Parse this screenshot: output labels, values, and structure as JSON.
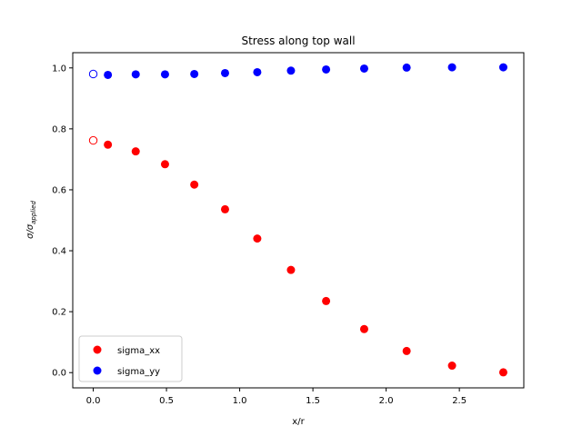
{
  "chart_data": {
    "type": "scatter",
    "title": "Stress along top wall",
    "xlabel": "x/r",
    "ylabel_main": "σ/σ",
    "ylabel_sub": "applied",
    "xlim": [
      -0.14,
      2.94
    ],
    "ylim": [
      -0.05,
      1.05
    ],
    "xticks": [
      0.0,
      0.5,
      1.0,
      1.5,
      2.0,
      2.5
    ],
    "xtick_labels": [
      "0.0",
      "0.5",
      "1.0",
      "1.5",
      "2.0",
      "2.5"
    ],
    "yticks": [
      0.0,
      0.2,
      0.4,
      0.6,
      0.8,
      1.0
    ],
    "ytick_labels": [
      "0.0",
      "0.2",
      "0.4",
      "0.6",
      "0.8",
      "1.0"
    ],
    "grid": false,
    "legend_position": "lower-left",
    "series": [
      {
        "name": "sigma_xx",
        "color": "#ff0000",
        "hollow_first": {
          "x": 0.0,
          "y": 0.762
        },
        "x": [
          0.1,
          0.29,
          0.49,
          0.69,
          0.9,
          1.12,
          1.35,
          1.59,
          1.85,
          2.14,
          2.45,
          2.8
        ],
        "y": [
          0.748,
          0.726,
          0.684,
          0.617,
          0.536,
          0.44,
          0.337,
          0.235,
          0.143,
          0.071,
          0.023,
          0.001
        ]
      },
      {
        "name": "sigma_yy",
        "color": "#0000ff",
        "hollow_first": {
          "x": 0.0,
          "y": 0.98
        },
        "x": [
          0.1,
          0.29,
          0.49,
          0.69,
          0.9,
          1.12,
          1.35,
          1.59,
          1.85,
          2.14,
          2.45,
          2.8
        ],
        "y": [
          0.977,
          0.979,
          0.979,
          0.98,
          0.983,
          0.986,
          0.991,
          0.995,
          0.998,
          1.001,
          1.002,
          1.002
        ]
      }
    ]
  }
}
